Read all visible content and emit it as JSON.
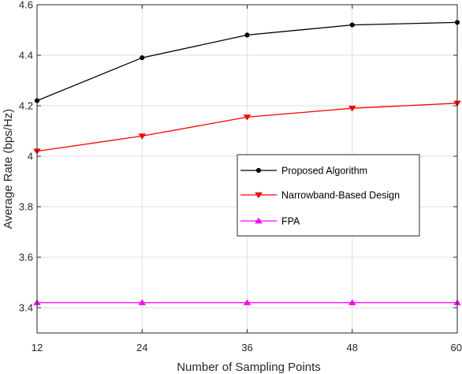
{
  "chart_data": {
    "type": "line",
    "xlabel": "Number of Sampling Points",
    "ylabel": "Average Rate (bps/Hz)",
    "x": [
      12,
      24,
      36,
      48,
      60
    ],
    "xlim": [
      12,
      60
    ],
    "ylim": [
      3.3,
      4.6
    ],
    "xticks": [
      12,
      24,
      36,
      48,
      60
    ],
    "yticks": [
      3.4,
      3.6,
      3.8,
      4,
      4.2,
      4.4,
      4.6
    ],
    "xtick_labels": [
      "12",
      "24",
      "36",
      "48",
      "60"
    ],
    "ytick_labels": [
      "3.4",
      "3.6",
      "3.8",
      "4",
      "4.2",
      "4.4",
      "4.6"
    ],
    "grid": true,
    "legend_position": "center-right",
    "series": [
      {
        "name": "Proposed Algorithm",
        "values": [
          4.22,
          4.39,
          4.48,
          4.52,
          4.53
        ],
        "color": "#000000",
        "marker": "dot"
      },
      {
        "name": "Narrowband-Based Design",
        "values": [
          4.02,
          4.08,
          4.155,
          4.19,
          4.21
        ],
        "color": "#ff0000",
        "marker": "triangle-down"
      },
      {
        "name": "FPA",
        "values": [
          3.42,
          3.42,
          3.42,
          3.42,
          3.42
        ],
        "color": "#ff00ff",
        "marker": "triangle-up"
      }
    ]
  }
}
